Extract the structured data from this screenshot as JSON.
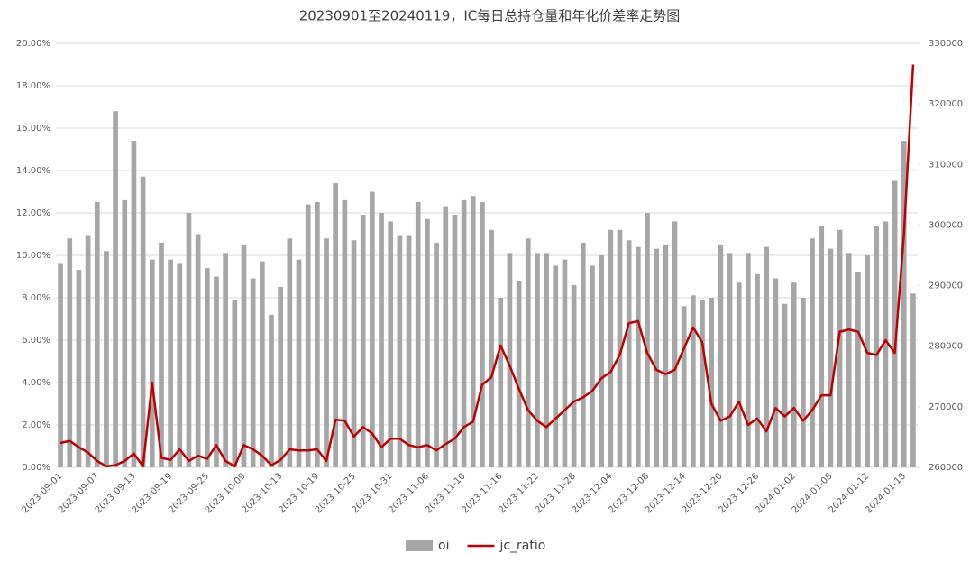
{
  "chart_data": {
    "type": "bar-line",
    "title": "20230901至20240119，IC每日总持仓量和年化价差率走势图",
    "categories": [
      "2023-09-01",
      null,
      null,
      null,
      "2023-09-07",
      null,
      null,
      null,
      "2023-09-13",
      null,
      null,
      null,
      "2023-09-19",
      null,
      null,
      null,
      "2023-09-25",
      null,
      null,
      null,
      "2023-10-09",
      null,
      null,
      null,
      "2023-10-13",
      null,
      null,
      null,
      "2023-10-19",
      null,
      null,
      null,
      "2023-10-25",
      null,
      null,
      null,
      "2023-10-31",
      null,
      null,
      null,
      "2023-11-06",
      null,
      null,
      null,
      "2023-11-10",
      null,
      null,
      null,
      "2023-11-16",
      null,
      null,
      null,
      "2023-11-22",
      null,
      null,
      null,
      "2023-11-28",
      null,
      null,
      null,
      "2023-12-04",
      null,
      null,
      null,
      "2023-12-08",
      null,
      null,
      null,
      "2023-12-14",
      null,
      null,
      null,
      "2023-12-20",
      null,
      null,
      null,
      "2023-12-26",
      null,
      null,
      null,
      "2024-01-02",
      null,
      null,
      null,
      "2024-01-08",
      null,
      null,
      null,
      "2024-01-12",
      null,
      null,
      null,
      "2024-01-18",
      null
    ],
    "series": [
      {
        "name": "oi",
        "kind": "bar",
        "axis": "y2",
        "color": "#a6a6a6",
        "values": [
          293600,
          297800,
          292600,
          298200,
          303800,
          295700,
          318800,
          304100,
          313900,
          308000,
          294300,
          297100,
          294300,
          293600,
          302000,
          298500,
          292900,
          291500,
          295400,
          287700,
          296800,
          291200,
          294000,
          285200,
          289800,
          297800,
          294300,
          303400,
          303800,
          297800,
          306900,
          304100,
          297500,
          301700,
          305500,
          302000,
          300600,
          298200,
          298200,
          303800,
          301000,
          297100,
          303100,
          301700,
          304100,
          304800,
          303800,
          299200,
          288000,
          295400,
          290800,
          297800,
          295400,
          295400,
          293300,
          294300,
          290100,
          297100,
          293300,
          295000,
          299200,
          299200,
          297500,
          296400,
          302000,
          296100,
          296800,
          300600,
          286600,
          288400,
          287700,
          288000,
          296800,
          295400,
          290500,
          295400,
          291900,
          296400,
          291200,
          287000,
          290500,
          288000,
          297800,
          299900,
          296100,
          299200,
          295400,
          292200,
          295000,
          299900,
          300600,
          307300,
          313900,
          288700
        ]
      },
      {
        "name": "jc_ratio",
        "kind": "line",
        "color": "#c00000",
        "values": [
          1.15,
          1.25,
          0.95,
          0.7,
          0.3,
          0.05,
          0.1,
          0.3,
          0.65,
          0.05,
          4.0,
          0.45,
          0.35,
          0.85,
          0.3,
          0.55,
          0.4,
          1.05,
          0.3,
          0.05,
          1.05,
          0.85,
          0.55,
          0.1,
          0.35,
          0.85,
          0.8,
          0.8,
          0.85,
          0.3,
          2.25,
          2.2,
          1.45,
          1.9,
          1.6,
          0.95,
          1.35,
          1.35,
          1.05,
          0.95,
          1.05,
          0.8,
          1.1,
          1.35,
          1.9,
          2.15,
          3.9,
          4.25,
          5.75,
          4.8,
          3.7,
          2.7,
          2.2,
          1.9,
          2.3,
          2.7,
          3.1,
          3.3,
          3.6,
          4.2,
          4.5,
          5.3,
          6.8,
          6.9,
          5.4,
          4.6,
          4.4,
          4.6,
          5.6,
          6.6,
          5.9,
          3.0,
          2.2,
          2.4,
          3.1,
          2.0,
          2.3,
          1.7,
          2.8,
          2.4,
          2.8,
          2.2,
          2.7,
          3.4,
          3.4,
          6.4,
          6.5,
          6.4,
          5.4,
          5.3,
          6.0,
          5.4,
          11.0,
          19.0
        ]
      }
    ],
    "ylim": [
      0,
      20
    ],
    "yticks": [
      {
        "value": 0,
        "label": "0.00%"
      },
      {
        "value": 2,
        "label": "2.00%"
      },
      {
        "value": 4,
        "label": "4.00%"
      },
      {
        "value": 6,
        "label": "6.00%"
      },
      {
        "value": 8,
        "label": "8.00%"
      },
      {
        "value": 10,
        "label": "10.00%"
      },
      {
        "value": 12,
        "label": "12.00%"
      },
      {
        "value": 14,
        "label": "14.00%"
      },
      {
        "value": 16,
        "label": "16.00%"
      },
      {
        "value": 18,
        "label": "18.00%"
      },
      {
        "value": 20,
        "label": "20.00%"
      }
    ],
    "y2lim": [
      260000,
      330000
    ],
    "y2ticks": [
      260000,
      270000,
      280000,
      290000,
      300000,
      310000,
      320000,
      330000
    ],
    "grid": true,
    "legend": "bottom"
  }
}
